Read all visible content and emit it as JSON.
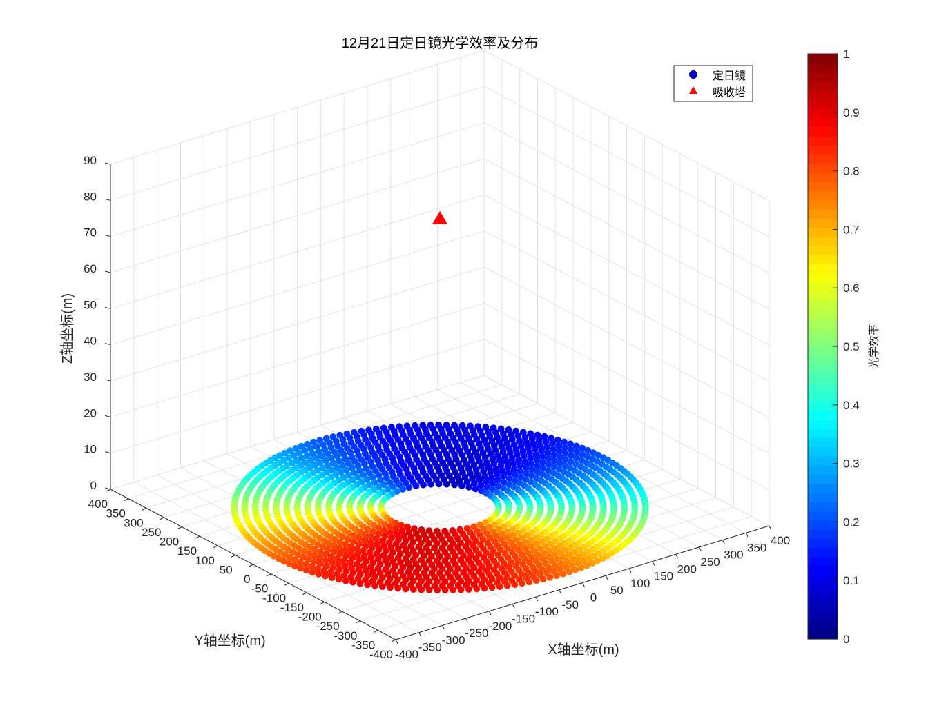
{
  "chart_data": {
    "type": "scatter",
    "title": "12月21日定日镜光学效率及分布",
    "xlabel": "X轴坐标(m)",
    "ylabel": "Y轴坐标(m)",
    "zlabel": "Z轴坐标(m)",
    "xlim": [
      -400,
      400
    ],
    "ylim": [
      -400,
      400
    ],
    "zlim": [
      0,
      90
    ],
    "x_ticks": [
      "-400",
      "-350",
      "-300",
      "-250",
      "-200",
      "-150",
      "-100",
      "-50",
      "0",
      "50",
      "100",
      "150",
      "200",
      "250",
      "300",
      "350",
      "400"
    ],
    "y_ticks": [
      "-400",
      "-350",
      "-300",
      "-250",
      "-200",
      "-150",
      "-100",
      "-50",
      "0",
      "50",
      "100",
      "150",
      "200",
      "250",
      "300",
      "350",
      "400"
    ],
    "z_ticks": [
      "0",
      "10",
      "20",
      "30",
      "40",
      "50",
      "60",
      "70",
      "80",
      "90"
    ],
    "grid": true,
    "view": "3d",
    "series": [
      {
        "name": "定日镜",
        "marker": "circle",
        "field": {
          "inner_radius": 100,
          "outer_radius": 350,
          "rings": 15,
          "z": 0,
          "efficiency_min": 0.05,
          "efficiency_max": 0.9,
          "efficiency_peak_direction": "-x -y",
          "efficiency_low_direction": "+x +y"
        }
      },
      {
        "name": "吸收塔",
        "marker": "triangle",
        "color": "#ff0000",
        "points": [
          {
            "x": 0,
            "y": 0,
            "z": 80
          }
        ]
      }
    ],
    "colorbar": {
      "label": "光学效率",
      "range": [
        0,
        1
      ],
      "ticks": [
        "0",
        "0.1",
        "0.2",
        "0.3",
        "0.4",
        "0.5",
        "0.6",
        "0.7",
        "0.8",
        "0.9",
        "1"
      ],
      "colormap": "jet"
    },
    "legend": {
      "position": "top-right",
      "entries": [
        {
          "label": "定日镜",
          "marker": "circle",
          "color": "#0000cd"
        },
        {
          "label": "吸收塔",
          "marker": "triangle",
          "color": "#ff0000"
        }
      ]
    }
  }
}
